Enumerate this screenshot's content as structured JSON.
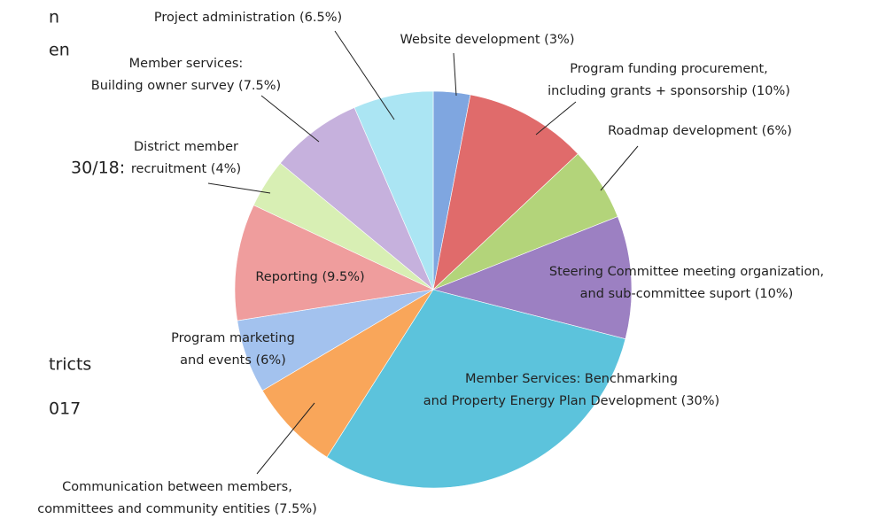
{
  "side_text": [
    "n",
    "en",
    "30/18:",
    "tricts",
    "017"
  ],
  "chart_data": {
    "type": "pie",
    "labels": [
      [
        "Website development (3%)"
      ],
      [
        "Program funding procurement,",
        "including grants + sponsorship (10%)"
      ],
      [
        "Roadmap development (6%)"
      ],
      [
        "Steering Committee meeting organization,",
        "and sub-committee suport (10%)"
      ],
      [
        "Member Services: Benchmarking",
        "and Property Energy Plan Development (30%)"
      ],
      [
        "Communication between members,",
        "committees and community entities (7.5%)"
      ],
      [
        "Program marketing",
        "and events (6%)"
      ],
      [
        "Reporting (9.5%)"
      ],
      [
        "District member",
        "recruitment (4%)"
      ],
      [
        "Member services:",
        "Building owner survey (7.5%)"
      ],
      [
        "Project administration (6.5%)"
      ]
    ],
    "values": [
      3,
      10,
      6,
      10,
      30,
      7.5,
      6,
      9.5,
      4,
      7.5,
      6.5
    ],
    "colors": [
      "#7fa6e0",
      "#e06b6b",
      "#b3d47a",
      "#9c80c2",
      "#5cc3dc",
      "#f9a65a",
      "#a3c2ee",
      "#ef9d9d",
      "#d8efb4",
      "#c6b1dd",
      "#abe5f3"
    ]
  }
}
